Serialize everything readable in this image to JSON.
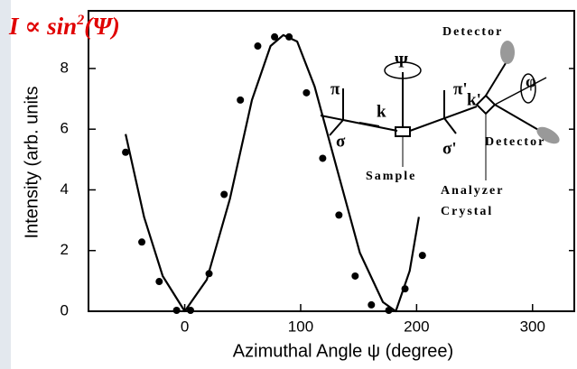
{
  "chart_data": {
    "type": "scatter",
    "formula": {
      "base": "I  ∝  sin",
      "sup": "2",
      "arg": "(Ψ)"
    },
    "x_label": "Azimuthal Angle ψ (degree)",
    "y_label": "Intensity (arb. units",
    "xlim": [
      -83,
      336
    ],
    "ylim": [
      0,
      9.9
    ],
    "xticks": [
      0,
      100,
      200,
      300
    ],
    "yticks": [
      0,
      2,
      4,
      6,
      8
    ],
    "series": [
      {
        "mode": "markers",
        "color": "#000000",
        "x": [
          -51,
          -37,
          -22,
          -7,
          5,
          21,
          34,
          48,
          63,
          77.5,
          90,
          105,
          119,
          133,
          147,
          161,
          176,
          190,
          205
        ],
        "values": [
          5.24,
          2.28,
          0.98,
          0.03,
          0.03,
          1.24,
          3.85,
          6.96,
          8.74,
          9.04,
          9.04,
          7.2,
          5.04,
          3.17,
          1.16,
          0.21,
          0.03,
          0.74,
          1.84
        ]
      },
      {
        "mode": "line",
        "color": "#000000",
        "x": [
          -51,
          -35,
          -19,
          0,
          19,
          39,
          58,
          74,
          85,
          97,
          112,
          132,
          151,
          171,
          182,
          194,
          202
        ],
        "values": [
          5.84,
          3.1,
          1.16,
          0,
          1.04,
          3.7,
          6.96,
          8.74,
          9.1,
          8.89,
          7.41,
          4.59,
          1.93,
          0.3,
          0,
          1.33,
          3.11
        ]
      }
    ],
    "inset": {
      "detector_top": "Detector",
      "detector_right": "Detector",
      "sample": "Sample",
      "analyzer": "Analyzer",
      "crystal": "Crystal",
      "psi": "Ψ",
      "pi": "π",
      "sigma": "σ",
      "k": "k",
      "pi_prime": "π'",
      "k_prime": "k'",
      "sigma_prime": "σ'",
      "phi": "φ"
    }
  }
}
